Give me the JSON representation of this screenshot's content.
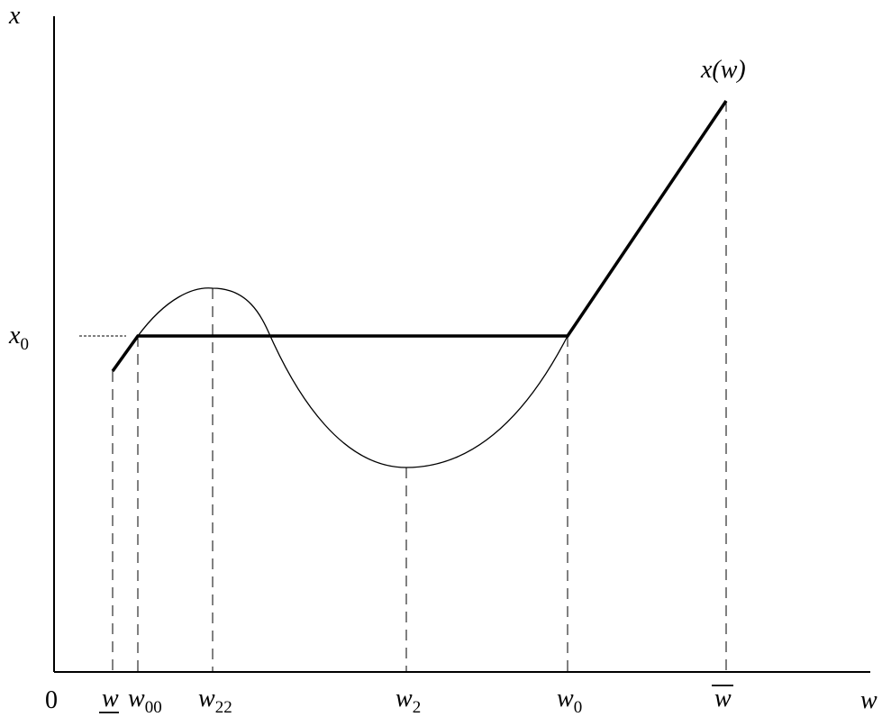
{
  "figure": {
    "axes": {
      "y_label": "x",
      "x_label": "w",
      "origin_label": "0"
    },
    "y_tick": {
      "base": "x",
      "sub": "0"
    },
    "x_ticks": [
      {
        "base": "w",
        "sub": "",
        "decor": "underline"
      },
      {
        "base": "w",
        "sub": "00",
        "decor": ""
      },
      {
        "base": "w",
        "sub": "22",
        "decor": ""
      },
      {
        "base": "w",
        "sub": "2",
        "decor": ""
      },
      {
        "base": "w",
        "sub": "0",
        "decor": ""
      },
      {
        "base": "w",
        "sub": "",
        "decor": "overline"
      }
    ],
    "curve_label": "x(w)",
    "colors": {
      "ink": "#000000",
      "background": "#ffffff"
    }
  }
}
